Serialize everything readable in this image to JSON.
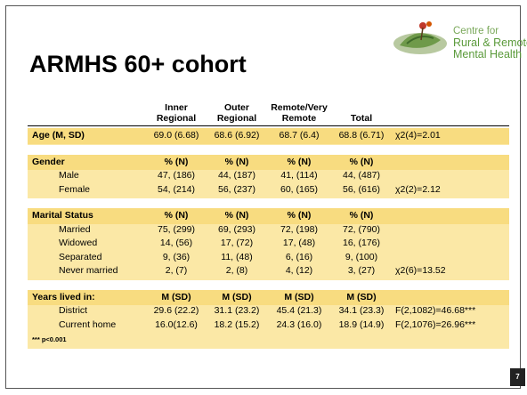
{
  "title": "ARMHS 60+ cohort",
  "logo": {
    "lines": [
      "Centre for",
      "Rural & Remote",
      "Mental Health"
    ]
  },
  "page_number": "7",
  "table": {
    "columns": [
      {
        "lines": [
          "Inner",
          "Regional"
        ]
      },
      {
        "lines": [
          "Outer",
          "Regional"
        ]
      },
      {
        "lines": [
          "Remote/Very",
          "Remote"
        ]
      },
      {
        "lines": [
          "Total"
        ]
      }
    ],
    "groups": [
      {
        "title": "Age (M, SD)",
        "title_cells": [
          "69.0 (6.68)",
          "68.6 (6.92)",
          "68.7 (6.4)",
          "68.8 (6.71)"
        ],
        "title_stat": "χ2(4)=2.01",
        "rows": []
      },
      {
        "title": "Gender",
        "title_cells": [
          "% (N)",
          "% (N)",
          "% (N)",
          "% (N)"
        ],
        "rows": [
          {
            "label": "Male",
            "cells": [
              "47, (186)",
              "44, (187)",
              "41, (114)",
              "44, (487)"
            ]
          },
          {
            "label": "Female",
            "cells": [
              "54, (214)",
              "56, (237)",
              "60, (165)",
              "56, (616)"
            ],
            "stat": "χ2(2)=2.12"
          }
        ]
      },
      {
        "title": "Marital Status",
        "title_cells": [
          "% (N)",
          "% (N)",
          "% (N)",
          "% (N)"
        ],
        "rows": [
          {
            "label": "Married",
            "cells": [
              "75, (299)",
              "69, (293)",
              "72, (198)",
              "72, (790)"
            ]
          },
          {
            "label": "Widowed",
            "cells": [
              "14, (56)",
              "17, (72)",
              "17, (48)",
              "16, (176)"
            ]
          },
          {
            "label": "Separated",
            "cells": [
              "9, (36)",
              "11, (48)",
              "6, (16)",
              "9, (100)"
            ]
          },
          {
            "label": "Never married",
            "cells": [
              "2, (7)",
              "2, (8)",
              "4, (12)",
              "3, (27)"
            ],
            "stat": "χ2(6)=13.52"
          }
        ]
      },
      {
        "title": "Years lived in:",
        "title_cells": [
          "M (SD)",
          "M (SD)",
          "M (SD)",
          "M (SD)"
        ],
        "rows": [
          {
            "label": "District",
            "cells": [
              "29.6 (22.2)",
              "31.1 (23.2)",
              "45.4 (21.3)",
              "34.1 (23.3)"
            ],
            "stat": "F(2,1082)=46.68***"
          },
          {
            "label": "Current home",
            "cells": [
              "16.0(12.6)",
              "18.2 (15.2)",
              "24.3 (16.0)",
              "18.9 (14.9)"
            ],
            "stat": "F(2,1076)=26.96***"
          }
        ]
      }
    ],
    "footnote": "*** p<0.001"
  }
}
